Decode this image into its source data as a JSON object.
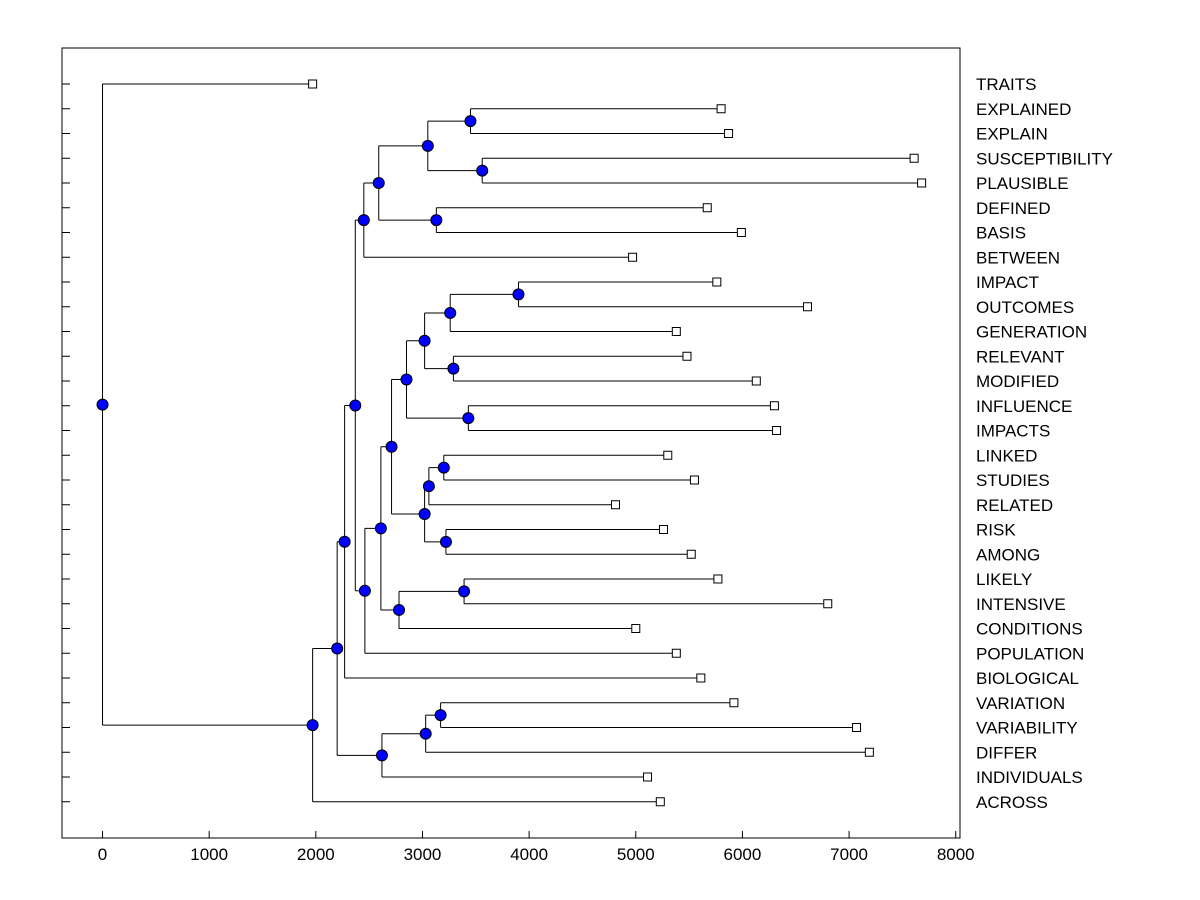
{
  "chart_data": {
    "type": "dendrogram",
    "xlim": [
      -380,
      8040
    ],
    "x_ticks": [
      0,
      1000,
      2000,
      3000,
      4000,
      5000,
      6000,
      7000,
      8000
    ],
    "x_tick_labels": [
      "0",
      "1000",
      "2000",
      "3000",
      "4000",
      "5000",
      "6000",
      "7000",
      "8000"
    ],
    "leaves": [
      {
        "label": "TRAITS",
        "x": 1970
      },
      {
        "label": "EXPLAINED",
        "x": 5800
      },
      {
        "label": "EXPLAIN",
        "x": 5870
      },
      {
        "label": "SUSCEPTIBILITY",
        "x": 7610
      },
      {
        "label": "PLAUSIBLE",
        "x": 7680
      },
      {
        "label": "DEFINED",
        "x": 5670
      },
      {
        "label": "BASIS",
        "x": 5990
      },
      {
        "label": "BETWEEN",
        "x": 4970
      },
      {
        "label": "IMPACT",
        "x": 5760
      },
      {
        "label": "OUTCOMES",
        "x": 6610
      },
      {
        "label": "GENERATION",
        "x": 5380
      },
      {
        "label": "RELEVANT",
        "x": 5480
      },
      {
        "label": "MODIFIED",
        "x": 6130
      },
      {
        "label": "INFLUENCE",
        "x": 6300
      },
      {
        "label": "IMPACTS",
        "x": 6320
      },
      {
        "label": "LINKED",
        "x": 5300
      },
      {
        "label": "STUDIES",
        "x": 5550
      },
      {
        "label": "RELATED",
        "x": 4810
      },
      {
        "label": "RISK",
        "x": 5260
      },
      {
        "label": "AMONG",
        "x": 5520
      },
      {
        "label": "LIKELY",
        "x": 5770
      },
      {
        "label": "INTENSIVE",
        "x": 6800
      },
      {
        "label": "CONDITIONS",
        "x": 5000
      },
      {
        "label": "POPULATION",
        "x": 5380
      },
      {
        "label": "BIOLOGICAL",
        "x": 5610
      },
      {
        "label": "VARIATION",
        "x": 5920
      },
      {
        "label": "VARIABILITY",
        "x": 7070
      },
      {
        "label": "DIFFER",
        "x": 7190
      },
      {
        "label": "INDIVIDUALS",
        "x": 5110
      },
      {
        "label": "ACROSS",
        "x": 5230
      }
    ],
    "merges": [
      {
        "id": "m1",
        "x": 3450,
        "children": [
          1,
          2
        ]
      },
      {
        "id": "m2",
        "x": 3560,
        "children": [
          3,
          4
        ]
      },
      {
        "id": "m3",
        "x": 3050,
        "children": [
          "m1",
          "m2"
        ]
      },
      {
        "id": "m4",
        "x": 3130,
        "children": [
          5,
          6
        ]
      },
      {
        "id": "m5",
        "x": 2590,
        "children": [
          "m3",
          "m4"
        ]
      },
      {
        "id": "m6",
        "x": 2450,
        "children": [
          "m5",
          7
        ]
      },
      {
        "id": "m7",
        "x": 3900,
        "children": [
          8,
          9
        ]
      },
      {
        "id": "m8",
        "x": 3260,
        "children": [
          "m7",
          10
        ]
      },
      {
        "id": "m9",
        "x": 3290,
        "children": [
          11,
          12
        ]
      },
      {
        "id": "m10",
        "x": 3020,
        "children": [
          "m8",
          "m9"
        ]
      },
      {
        "id": "m11",
        "x": 3430,
        "children": [
          13,
          14
        ]
      },
      {
        "id": "m12",
        "x": 2850,
        "children": [
          "m10",
          "m11"
        ]
      },
      {
        "id": "m13",
        "x": 3200,
        "children": [
          15,
          16
        ]
      },
      {
        "id": "m14",
        "x": 3060,
        "children": [
          "m13",
          17
        ]
      },
      {
        "id": "m15",
        "x": 3220,
        "children": [
          18,
          19
        ]
      },
      {
        "id": "m16",
        "x": 3020,
        "children": [
          "m14",
          "m15"
        ]
      },
      {
        "id": "m17",
        "x": 2710,
        "children": [
          "m12",
          "m16"
        ]
      },
      {
        "id": "m18",
        "x": 3390,
        "children": [
          20,
          21
        ]
      },
      {
        "id": "m19",
        "x": 2780,
        "children": [
          "m18",
          22
        ]
      },
      {
        "id": "m20",
        "x": 2610,
        "children": [
          "m17",
          "m19"
        ]
      },
      {
        "id": "m21",
        "x": 2460,
        "children": [
          "m20",
          23
        ]
      },
      {
        "id": "m22",
        "x": 2370,
        "children": [
          "m6",
          "m21"
        ]
      },
      {
        "id": "m23",
        "x": 2270,
        "children": [
          "m22",
          24
        ]
      },
      {
        "id": "m24",
        "x": 3170,
        "children": [
          25,
          26
        ]
      },
      {
        "id": "m25",
        "x": 3030,
        "children": [
          "m24",
          27
        ]
      },
      {
        "id": "m26",
        "x": 2620,
        "children": [
          "m25",
          28
        ]
      },
      {
        "id": "m27",
        "x": 2200,
        "children": [
          "m23",
          "m26"
        ]
      },
      {
        "id": "m28",
        "x": 1970,
        "children": [
          "m27",
          29
        ]
      },
      {
        "id": "m29",
        "x": 0,
        "children": [
          0,
          "m28"
        ]
      }
    ]
  },
  "colors": {
    "node_fill": "#0000ff",
    "node_stroke": "#000000",
    "line": "#000000",
    "leaf_fill": "#ffffff"
  }
}
